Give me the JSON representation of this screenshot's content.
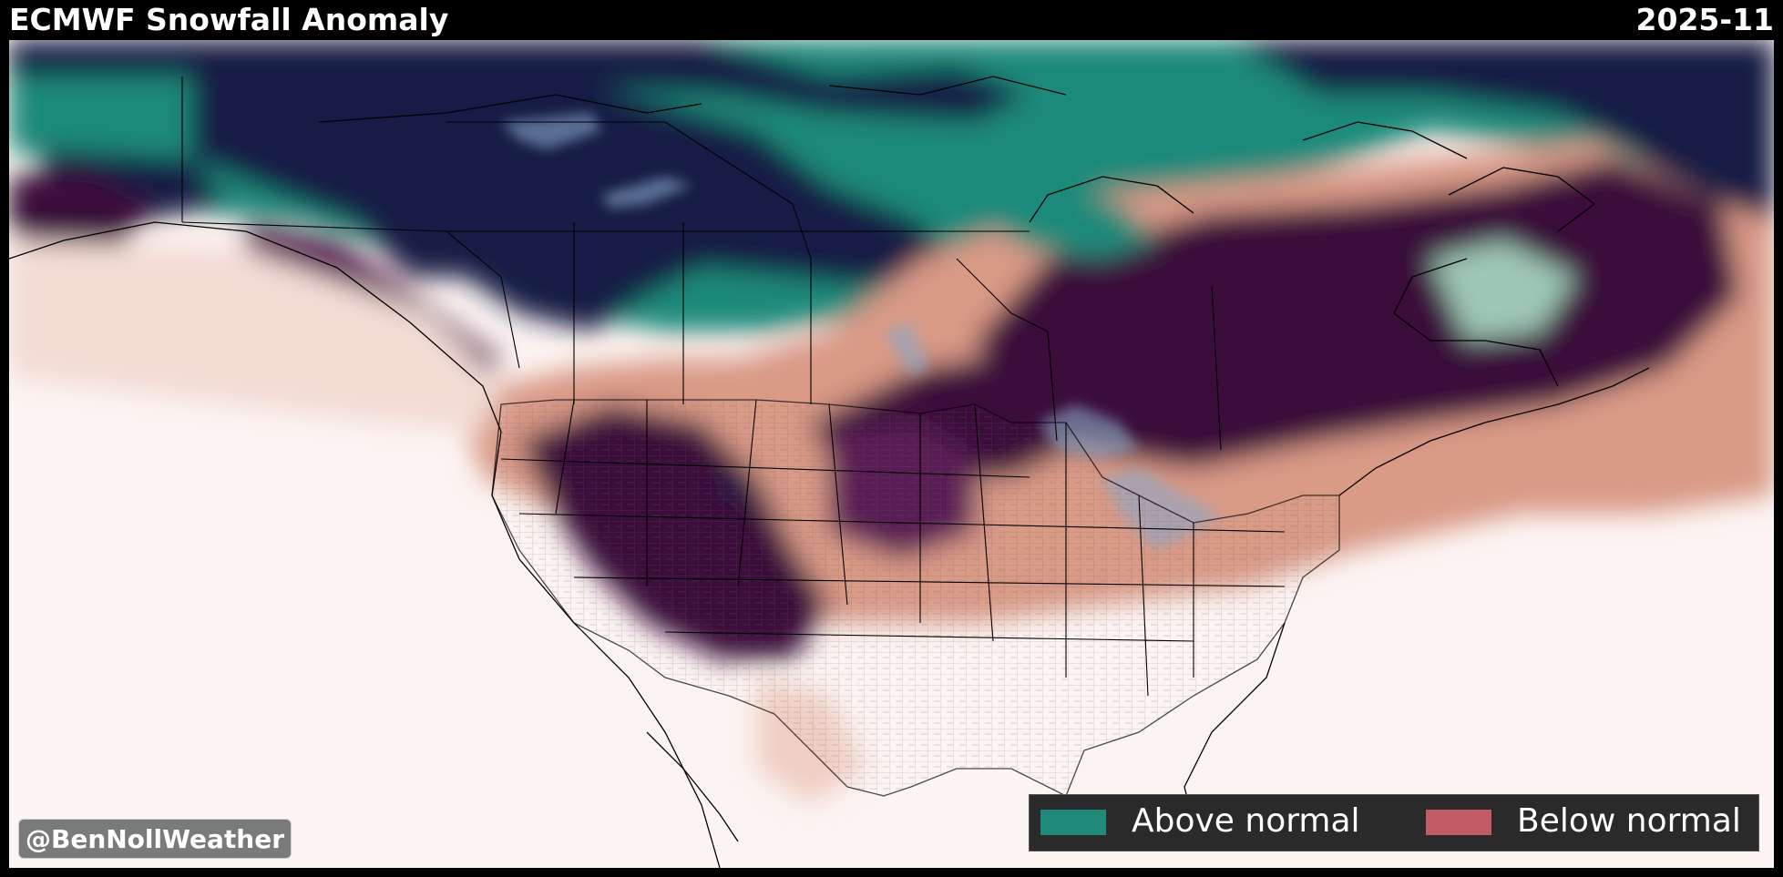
{
  "header": {
    "title": "ECMWF Snowfall Anomaly",
    "date": "2025-11"
  },
  "credit": "@BenNollWeather",
  "legend": {
    "items": [
      {
        "label": "Above normal",
        "color": "#1f8a7a"
      },
      {
        "label": "Below normal",
        "color": "#c15b66"
      }
    ]
  },
  "colors": {
    "much_above": "#151b45",
    "above": "#1f8a7a",
    "normal": "#fcf4f2",
    "below": "#d99a86",
    "much_below": "#3a0f3a",
    "lakes": "#8aa7c9"
  }
}
